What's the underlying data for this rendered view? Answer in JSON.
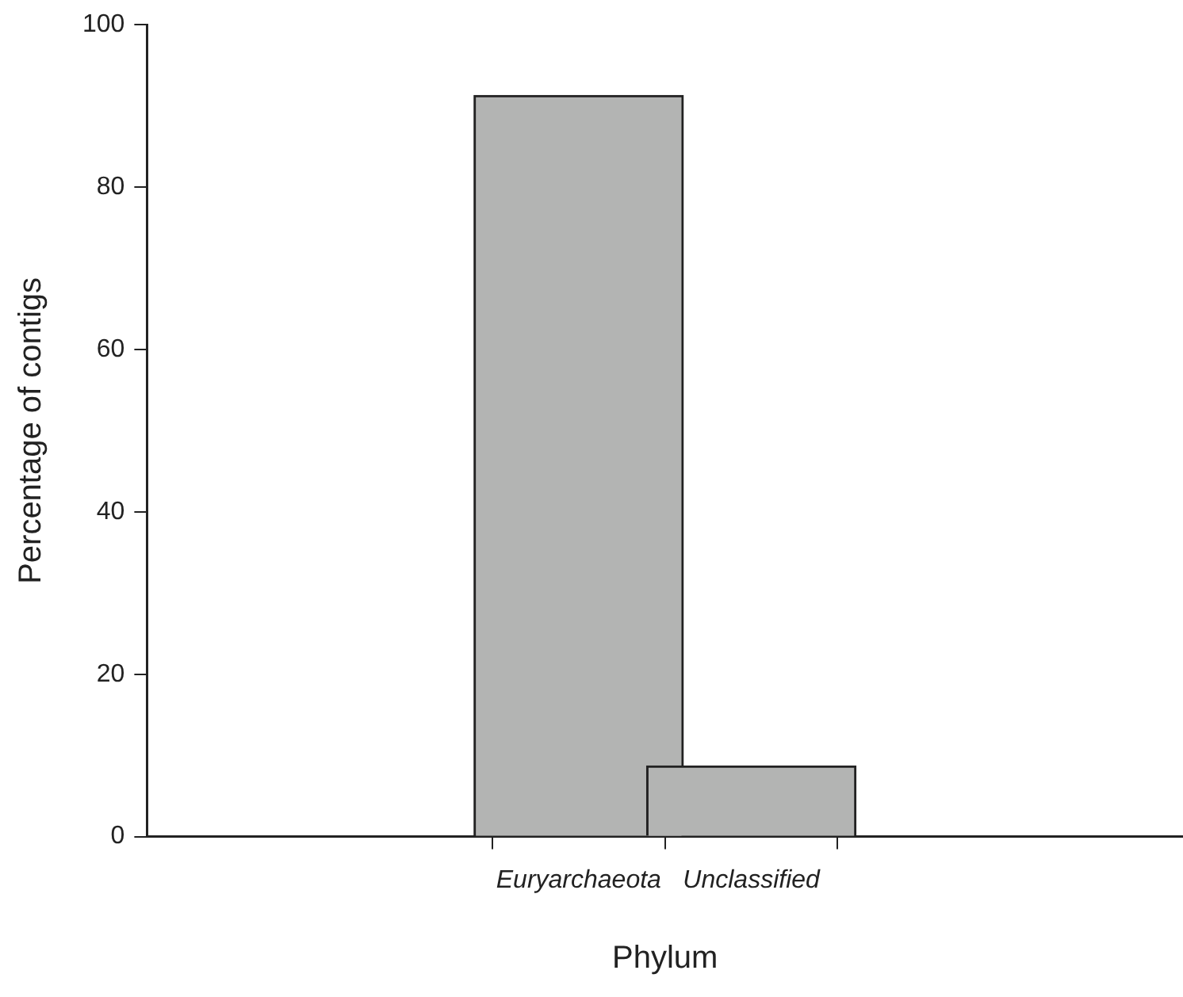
{
  "chart_data": {
    "type": "bar",
    "xlabel": "Phylum",
    "ylabel": "Percentage of contigs",
    "categories": [
      "Euryarchaeota",
      "Unclassified"
    ],
    "values": [
      91.3,
      8.7
    ],
    "color": "#b3b4b3",
    "ylim": [
      0,
      100
    ],
    "yticks": [
      0,
      20,
      40,
      60,
      80,
      100
    ],
    "grid": false,
    "legend": false
  }
}
